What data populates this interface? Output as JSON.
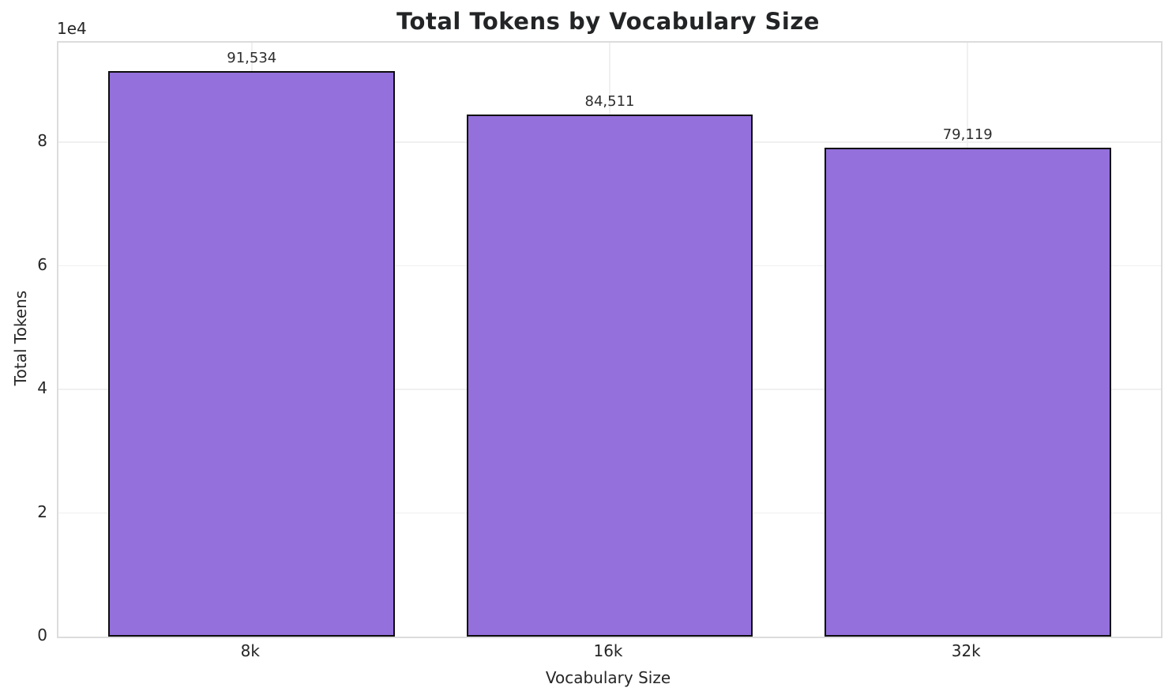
{
  "chart_data": {
    "type": "bar",
    "title": "Total Tokens by Vocabulary Size",
    "categories": [
      "8k",
      "16k",
      "32k"
    ],
    "values": [
      91534,
      84511,
      79119
    ],
    "value_labels": [
      "91,534",
      "84,511",
      "79,119"
    ],
    "xlabel": "Vocabulary Size",
    "ylabel": "Total Tokens",
    "ylim": [
      0,
      96111
    ],
    "yticks": [
      0,
      20000,
      40000,
      60000,
      80000
    ],
    "ytick_labels": [
      "0",
      "2",
      "4",
      "6",
      "8"
    ],
    "offset_label": "1e4",
    "grid": true,
    "legend": null,
    "bar_color": "#9370DB",
    "bar_edge_color": "#0d0d0d",
    "grid_color": "#f0f0f0",
    "spine_color": "#dcdcdc",
    "text_color": "#262626",
    "bar_width_frac": 0.8
  }
}
